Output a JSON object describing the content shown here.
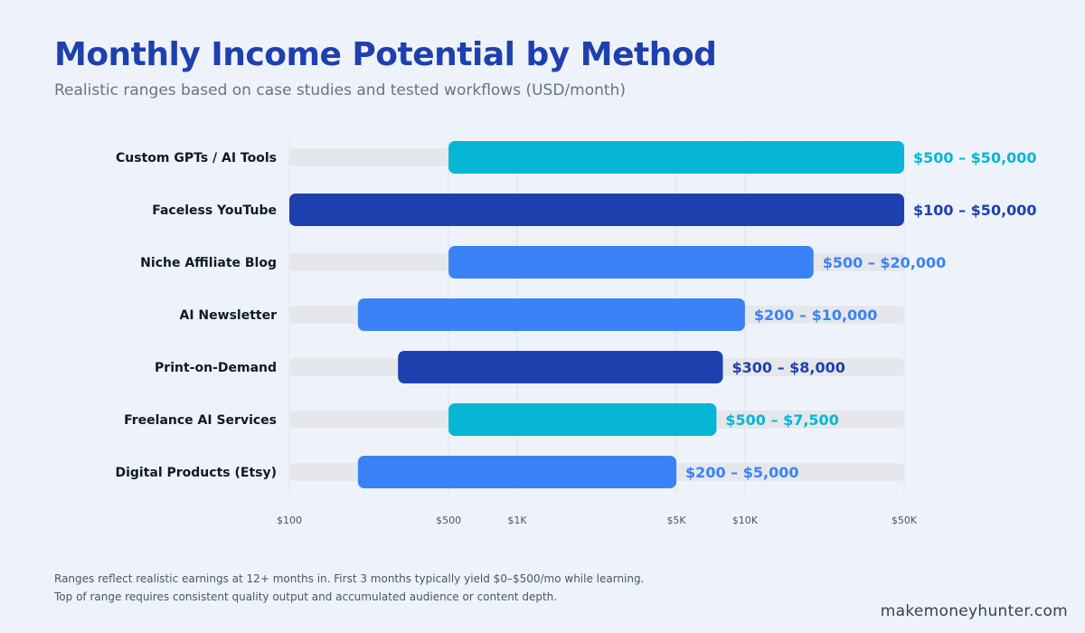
{
  "header": {
    "title": "Monthly Income Potential by Method",
    "subtitle": "Realistic ranges based on case studies and tested workflows (USD/month)"
  },
  "chart_data": {
    "type": "bar",
    "orientation": "horizontal",
    "scale": "log",
    "xlim": [
      100,
      50000
    ],
    "x_ticks": [
      {
        "value": 100,
        "label": "$100"
      },
      {
        "value": 500,
        "label": "$500"
      },
      {
        "value": 1000,
        "label": "$1K"
      },
      {
        "value": 5000,
        "label": "$5K"
      },
      {
        "value": 10000,
        "label": "$10K"
      },
      {
        "value": 50000,
        "label": "$50K"
      }
    ],
    "grid": true,
    "bars": [
      {
        "category": "Custom GPTs / AI Tools",
        "min": 500,
        "max": 50000,
        "label": "$500 – $50,000",
        "color": "#06b6d4"
      },
      {
        "category": "Faceless YouTube",
        "min": 100,
        "max": 50000,
        "label": "$100 – $50,000",
        "color": "#1e40af"
      },
      {
        "category": "Niche Affiliate Blog",
        "min": 500,
        "max": 20000,
        "label": "$500 – $20,000",
        "color": "#3b82f6"
      },
      {
        "category": "AI Newsletter",
        "min": 200,
        "max": 10000,
        "label": "$200 – $10,000",
        "color": "#3b82f6"
      },
      {
        "category": "Print-on-Demand",
        "min": 300,
        "max": 8000,
        "label": "$300 – $8,000",
        "color": "#1e40af"
      },
      {
        "category": "Freelance AI Services",
        "min": 500,
        "max": 7500,
        "label": "$500 – $7,500",
        "color": "#06b6d4"
      },
      {
        "category": "Digital Products (Etsy)",
        "min": 200,
        "max": 5000,
        "label": "$200 – $5,000",
        "color": "#3b82f6"
      }
    ]
  },
  "footnote": {
    "line1": "Ranges reflect realistic earnings at 12+ months in. First 3 months typically yield $0–$500/mo while learning.",
    "line2": "Top of range requires consistent quality output and accumulated audience or content depth."
  },
  "brand": "makemoneyhunter.com"
}
